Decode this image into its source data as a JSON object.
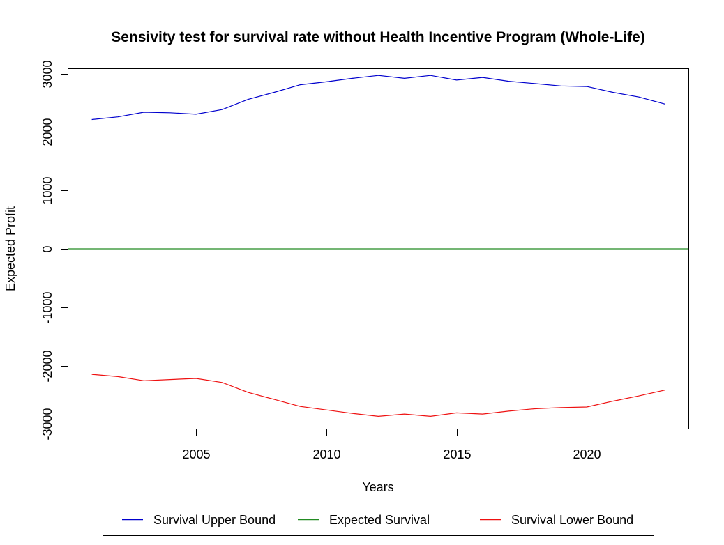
{
  "chart_data": {
    "type": "line",
    "title": "Sensivity test for survival rate without Health Incentive Program (Whole-Life)",
    "xlabel": "Years",
    "ylabel": "Expected Profit",
    "xlim": [
      2000.1,
      2023.9
    ],
    "ylim": [
      -3080,
      3080
    ],
    "x_ticks": [
      2005,
      2010,
      2015,
      2020
    ],
    "y_ticks": [
      -3000,
      -2000,
      -1000,
      0,
      1000,
      2000,
      3000
    ],
    "grid": false,
    "legend_position": "bottom",
    "x": [
      2001,
      2002,
      2003,
      2004,
      2005,
      2006,
      2007,
      2008,
      2009,
      2010,
      2011,
      2012,
      2013,
      2014,
      2015,
      2016,
      2017,
      2018,
      2019,
      2020,
      2021,
      2022,
      2023
    ],
    "series": [
      {
        "name": "Survival Upper Bound",
        "color": "#0000cd",
        "values": [
          2215,
          2260,
          2340,
          2330,
          2305,
          2385,
          2560,
          2680,
          2810,
          2860,
          2920,
          2970,
          2920,
          2970,
          2890,
          2935,
          2870,
          2830,
          2790,
          2780,
          2680,
          2600,
          2480
        ]
      },
      {
        "name": "Expected Survival",
        "color": "#228b22",
        "values": [
          0,
          0,
          0,
          0,
          0,
          0,
          0,
          0,
          0,
          0,
          0,
          0,
          0,
          0,
          0,
          0,
          0,
          0,
          0,
          0,
          0,
          0,
          0
        ]
      },
      {
        "name": "Survival Lower Bound",
        "color": "#ee1111",
        "values": [
          -2150,
          -2190,
          -2260,
          -2240,
          -2220,
          -2290,
          -2460,
          -2580,
          -2700,
          -2760,
          -2820,
          -2870,
          -2830,
          -2870,
          -2810,
          -2830,
          -2780,
          -2740,
          -2720,
          -2710,
          -2610,
          -2520,
          -2420
        ]
      }
    ]
  }
}
